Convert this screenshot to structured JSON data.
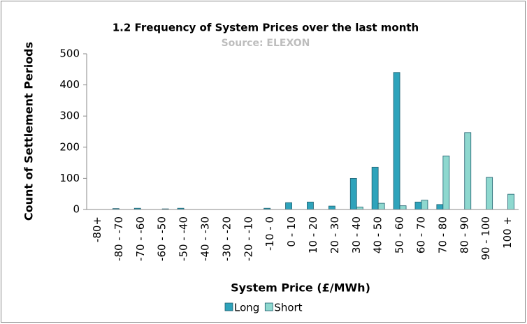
{
  "chart_data": {
    "type": "bar",
    "title": "1.2 Frequency of System Prices over the last month",
    "subtitle": "Source: ELEXON",
    "x_label": "System Price (£/MWh)",
    "y_label": "Count of Settlement Periods",
    "categories": [
      "-80+",
      "-80 - -70",
      "-70 - -60",
      "-60 - -50",
      "-50 - -40",
      "-40 - -30",
      "-30 - -20",
      "-20 - -10",
      "-10 - 0",
      "0 - 10",
      "10 - 20",
      "20 - 30",
      "30 - 40",
      "40 - 50",
      "50 - 60",
      "60 - 70",
      "70 - 80",
      "80 - 90",
      "90 - 100",
      "100 +"
    ],
    "series": [
      {
        "name": "Long",
        "color": "#2ea3bb",
        "values": [
          0,
          3,
          4,
          0,
          4,
          0,
          0,
          0,
          4,
          22,
          24,
          11,
          100,
          136,
          440,
          24,
          16,
          0,
          0,
          0
        ]
      },
      {
        "name": "Short",
        "color": "#8ed8cf",
        "values": [
          0,
          0,
          0,
          2,
          0,
          0,
          0,
          0,
          0,
          0,
          0,
          0,
          8,
          20,
          12,
          30,
          172,
          247,
          103,
          49
        ]
      }
    ],
    "ylim": [
      0,
      500
    ],
    "yticks": [
      0,
      100,
      200,
      300,
      400,
      500
    ],
    "grid": false,
    "legend": "bottom"
  }
}
